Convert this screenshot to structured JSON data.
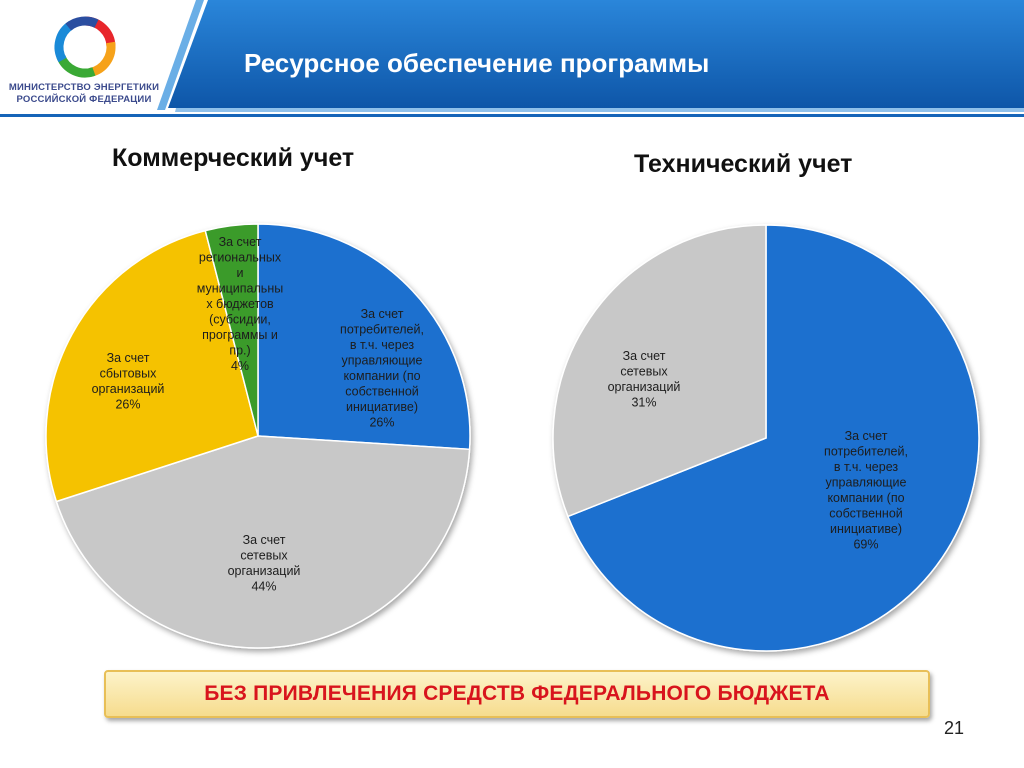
{
  "header": {
    "title": "Ресурсное обеспечение программы",
    "ministry_line1": "МИНИСТЕРСТВО ЭНЕРГЕТИКИ",
    "ministry_line2": "РОССИЙСКОЙ ФЕДЕРАЦИИ"
  },
  "colors": {
    "header_blue": "#1564b8",
    "header_dark": "#0b4c95",
    "blue": "#1a6fcf",
    "gray": "#c8c8c8",
    "yellow": "#f5c200",
    "green": "#3b9b2a",
    "banner_text": "#d8141d"
  },
  "chart_data": [
    {
      "type": "pie",
      "title": "Коммерческий учет",
      "slices": [
        {
          "label": [
            "За счет",
            "потребителей,",
            "в т.ч. через",
            "управляющие",
            "компании (по",
            "собственной",
            "инициативе)",
            "26%"
          ],
          "value": 26,
          "color": "#1a6fcf"
        },
        {
          "label": [
            "За счет",
            "сетевых",
            "организаций",
            "44%"
          ],
          "value": 44,
          "color": "#c8c8c8"
        },
        {
          "label": [
            "За счет",
            "сбытовых",
            "организаций",
            "26%"
          ],
          "value": 26,
          "color": "#f5c200"
        },
        {
          "label": [
            "За счет",
            "региональных",
            "и",
            "муниципальны",
            "х бюджетов",
            "(субсидии,",
            "программы и",
            "пр.)",
            "4%"
          ],
          "value": 4,
          "color": "#3b9b2a"
        }
      ]
    },
    {
      "type": "pie",
      "title": "Технический учет",
      "slices": [
        {
          "label": [
            "За счет",
            "потребителей,",
            "в т.ч. через",
            "управляющие",
            "компании (по",
            "собственной",
            "инициативе)",
            "69%"
          ],
          "value": 69,
          "color": "#1a6fcf"
        },
        {
          "label": [
            "За счет",
            "сетевых",
            "организаций",
            "31%"
          ],
          "value": 31,
          "color": "#c8c8c8"
        }
      ]
    }
  ],
  "banner": "БЕЗ ПРИВЛЕЧЕНИЯ СРЕДСТВ ФЕДЕРАЛЬНОГО БЮДЖЕТА",
  "page_number": "21"
}
